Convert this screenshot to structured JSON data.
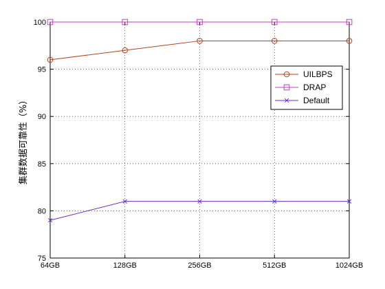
{
  "chart_data": {
    "type": "line",
    "title": "",
    "xlabel": "",
    "ylabel": "集群数据可靠性（%）",
    "categories": [
      "64GB",
      "128GB",
      "256GB",
      "512GB",
      "1024GB"
    ],
    "ylim": [
      75,
      100
    ],
    "yticks": [
      75,
      80,
      85,
      90,
      95,
      100
    ],
    "grid": true,
    "legend_position": "right",
    "series": [
      {
        "name": "UILBPS",
        "values": [
          96,
          97,
          98,
          98,
          98
        ],
        "color": "#b5421a",
        "marker": "circle"
      },
      {
        "name": "DRAP",
        "values": [
          100,
          100,
          100,
          100,
          100
        ],
        "color": "#c43fbf",
        "marker": "square"
      },
      {
        "name": "Default",
        "values": [
          79,
          81,
          81,
          81,
          81
        ],
        "color": "#6a2fc8",
        "marker": "x"
      }
    ]
  }
}
